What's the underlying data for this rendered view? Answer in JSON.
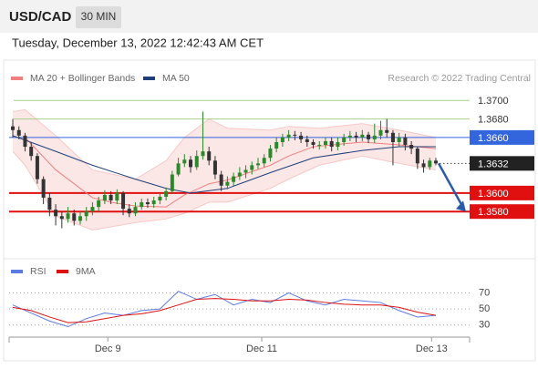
{
  "header": {
    "symbol": "USD/CAD",
    "timeframe": "30 MIN",
    "datetime": "Tuesday, December 13, 2022 12:42:43 AM CET",
    "credit": "Research © 2022 Trading Central"
  },
  "chart_data": [
    {
      "type": "candlestick",
      "xlim": [
        -0.3,
        74.5
      ],
      "ylim": [
        1.353,
        1.3715
      ],
      "up_color": "#2a8a2a",
      "down_color": "#333333",
      "open": [
        1.3672,
        1.3668,
        1.3662,
        1.365,
        1.364,
        1.3615,
        1.3595,
        1.3582,
        1.3575,
        1.3572,
        1.3578,
        1.357,
        1.3575,
        1.358,
        1.3585,
        1.3592,
        1.3598,
        1.3592,
        1.36,
        1.3583,
        1.3578,
        1.3585,
        1.359,
        1.3588,
        1.3592,
        1.3596,
        1.3602,
        1.362,
        1.3632,
        1.3636,
        1.3628,
        1.364,
        1.3645,
        1.3635,
        1.362,
        1.3608,
        1.3612,
        1.3618,
        1.3622,
        1.3625,
        1.363,
        1.3632,
        1.3638,
        1.3648,
        1.3655,
        1.366,
        1.3663,
        1.3662,
        1.3658,
        1.3655,
        1.3652,
        1.3652,
        1.3656,
        1.365,
        1.3655,
        1.366,
        1.3662,
        1.366,
        1.3663,
        1.3658,
        1.3662,
        1.3668,
        1.3665,
        1.3655,
        1.366,
        1.3652,
        1.3648,
        1.3632,
        1.3628,
        1.3635
      ],
      "high": [
        1.368,
        1.3672,
        1.3665,
        1.3655,
        1.3643,
        1.3618,
        1.36,
        1.3588,
        1.358,
        1.3585,
        1.3582,
        1.358,
        1.3585,
        1.359,
        1.3596,
        1.3603,
        1.3602,
        1.3604,
        1.3602,
        1.3588,
        1.359,
        1.3594,
        1.3594,
        1.3596,
        1.36,
        1.3606,
        1.3624,
        1.3638,
        1.3642,
        1.364,
        1.3646,
        1.3688,
        1.365,
        1.364,
        1.3624,
        1.3618,
        1.3622,
        1.3628,
        1.363,
        1.3634,
        1.3638,
        1.3642,
        1.3652,
        1.366,
        1.3664,
        1.3668,
        1.3667,
        1.3666,
        1.3662,
        1.3658,
        1.3656,
        1.366,
        1.366,
        1.366,
        1.3664,
        1.3667,
        1.3666,
        1.3668,
        1.3666,
        1.3675,
        1.3678,
        1.368,
        1.3668,
        1.3665,
        1.3664,
        1.3656,
        1.365,
        1.3636,
        1.3638,
        1.3638
      ],
      "low": [
        1.366,
        1.3658,
        1.3645,
        1.3635,
        1.361,
        1.3588,
        1.3575,
        1.3565,
        1.3562,
        1.3568,
        1.3565,
        1.3566,
        1.357,
        1.3576,
        1.358,
        1.3588,
        1.3588,
        1.3588,
        1.3576,
        1.3574,
        1.3575,
        1.3582,
        1.3584,
        1.3584,
        1.3588,
        1.3592,
        1.36,
        1.3618,
        1.3628,
        1.3622,
        1.3625,
        1.3636,
        1.363,
        1.3615,
        1.3602,
        1.3604,
        1.3608,
        1.3614,
        1.3616,
        1.362,
        1.3626,
        1.3628,
        1.3634,
        1.3644,
        1.365,
        1.3656,
        1.3657,
        1.3654,
        1.365,
        1.3648,
        1.3647,
        1.3648,
        1.3645,
        1.3646,
        1.3651,
        1.3656,
        1.3655,
        1.3656,
        1.3654,
        1.3654,
        1.3658,
        1.366,
        1.363,
        1.365,
        1.3646,
        1.3642,
        1.3626,
        1.3622,
        1.3625,
        1.363
      ],
      "close": [
        1.3668,
        1.3662,
        1.365,
        1.364,
        1.3615,
        1.3595,
        1.3582,
        1.3575,
        1.3572,
        1.3578,
        1.357,
        1.3575,
        1.358,
        1.3585,
        1.3592,
        1.3598,
        1.3592,
        1.36,
        1.3583,
        1.3578,
        1.3585,
        1.359,
        1.3588,
        1.3592,
        1.3596,
        1.3602,
        1.362,
        1.3632,
        1.3636,
        1.3628,
        1.364,
        1.3645,
        1.3635,
        1.362,
        1.3608,
        1.3612,
        1.3618,
        1.3622,
        1.3625,
        1.363,
        1.3632,
        1.3638,
        1.3648,
        1.3655,
        1.366,
        1.3663,
        1.3662,
        1.3658,
        1.3655,
        1.3652,
        1.3652,
        1.3656,
        1.365,
        1.3655,
        1.366,
        1.3662,
        1.366,
        1.3663,
        1.3658,
        1.3662,
        1.3668,
        1.3665,
        1.3655,
        1.366,
        1.3652,
        1.3648,
        1.3632,
        1.3628,
        1.3635,
        1.3632
      ],
      "bands": {
        "color": "#f4a0a0",
        "x": [
          0,
          2,
          7,
          13,
          20,
          25,
          28,
          32,
          35,
          42,
          45,
          50,
          57,
          63,
          69
        ],
        "upper": [
          1.3688,
          1.369,
          1.3662,
          1.3625,
          1.3615,
          1.3635,
          1.366,
          1.368,
          1.367,
          1.3668,
          1.3672,
          1.367,
          1.3675,
          1.3668,
          1.366
        ],
        "lower": [
          1.3645,
          1.363,
          1.3575,
          1.356,
          1.3568,
          1.3572,
          1.3578,
          1.359,
          1.359,
          1.3605,
          1.3615,
          1.363,
          1.364,
          1.3632,
          1.3625
        ]
      },
      "series": [
        {
          "name": "MA 20 + Bollinger Bands",
          "color": "#f08080",
          "x": [
            2,
            7,
            13,
            16,
            20,
            25,
            28,
            32,
            35,
            42,
            45,
            49,
            57,
            63,
            69
          ],
          "values": [
            1.366,
            1.3625,
            1.3595,
            1.359,
            1.3586,
            1.3585,
            1.3598,
            1.361,
            1.3614,
            1.363,
            1.364,
            1.365,
            1.3655,
            1.3652,
            1.3648
          ]
        },
        {
          "name": "MA 50",
          "color": "#1f3f7a",
          "x": [
            0,
            7,
            13,
            20,
            25,
            29,
            35,
            42,
            49,
            57,
            63,
            69
          ],
          "values": [
            1.3662,
            1.3645,
            1.363,
            1.3615,
            1.3605,
            1.36,
            1.3605,
            1.3622,
            1.3638,
            1.3646,
            1.365,
            1.365
          ]
        }
      ],
      "levels": [
        {
          "value": 1.37,
          "label": "1.3700",
          "color": "#a8cf8a",
          "boxed": false,
          "dashed": false
        },
        {
          "value": 1.368,
          "label": "1.3680",
          "color": "#a8cf8a",
          "boxed": false,
          "dashed": false
        },
        {
          "value": 1.366,
          "label": "1.3660",
          "color": "#3366dd",
          "boxed": true,
          "dashed": false
        },
        {
          "value": 1.3632,
          "label": "1.3632",
          "color": "#222222",
          "boxed": true,
          "dashed": true
        },
        {
          "value": 1.36,
          "label": "1.3600",
          "color": "#e01010",
          "boxed": true,
          "dashed": false
        },
        {
          "value": 1.358,
          "label": "1.3580",
          "color": "#e01010",
          "boxed": true,
          "dashed": false
        }
      ]
    },
    {
      "type": "line",
      "xlim": [
        -0.3,
        74.5
      ],
      "ylim": [
        15,
        83
      ],
      "yticks": [
        30,
        50,
        70
      ],
      "xticks": [
        {
          "value": 15.5,
          "label": "Dec 9"
        },
        {
          "value": 40.6,
          "label": "Dec 11"
        },
        {
          "value": 68.3,
          "label": "Dec 13"
        }
      ],
      "series": [
        {
          "name": "RSI",
          "color": "#5b7be0",
          "x": [
            0,
            3,
            6,
            9,
            12,
            15,
            18,
            21,
            24,
            27,
            30,
            33,
            36,
            39,
            42,
            45,
            48,
            51,
            54,
            57,
            60,
            63,
            66,
            69
          ],
          "values": [
            55,
            45,
            35,
            28,
            38,
            45,
            42,
            48,
            50,
            72,
            62,
            68,
            55,
            62,
            58,
            70,
            60,
            55,
            62,
            60,
            58,
            48,
            40,
            42
          ]
        },
        {
          "name": "9MA",
          "color": "#dd1111",
          "x": [
            0,
            3,
            6,
            9,
            12,
            15,
            18,
            21,
            24,
            27,
            30,
            33,
            36,
            39,
            42,
            45,
            48,
            51,
            54,
            57,
            60,
            63,
            66,
            69
          ],
          "values": [
            52,
            48,
            40,
            33,
            34,
            38,
            42,
            44,
            48,
            55,
            62,
            63,
            62,
            60,
            60,
            62,
            61,
            58,
            56,
            55,
            55,
            52,
            46,
            42
          ]
        }
      ]
    }
  ]
}
